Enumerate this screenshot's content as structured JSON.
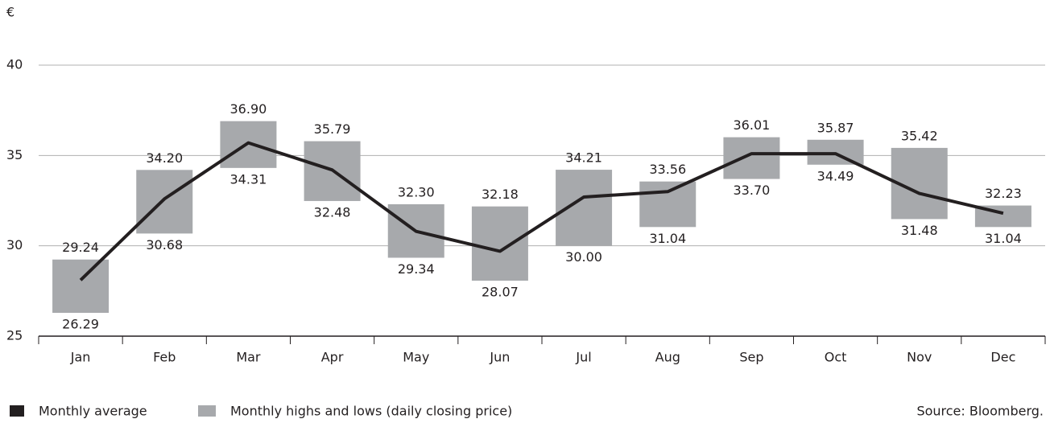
{
  "chart_data": {
    "type": "range",
    "ylabel": "€",
    "categories": [
      "Jan",
      "Feb",
      "Mar",
      "Apr",
      "May",
      "Jun",
      "Jul",
      "Aug",
      "Sep",
      "Oct",
      "Nov",
      "Dec"
    ],
    "series": [
      {
        "name": "Monthly average",
        "color": "#231f20",
        "values": [
          28.1,
          32.6,
          35.7,
          34.2,
          30.8,
          29.7,
          32.7,
          33.0,
          35.1,
          35.1,
          32.9,
          31.8
        ]
      },
      {
        "name": "Monthly highs and lows (daily closing price)",
        "color": "#a7a9ac",
        "high": [
          29.24,
          34.2,
          36.9,
          35.79,
          32.3,
          32.18,
          34.21,
          33.56,
          36.01,
          35.87,
          35.42,
          32.23
        ],
        "high_labels": [
          "29.24",
          "34.20",
          "36.90",
          "35.79",
          "32.30",
          "32.18",
          "34.21",
          "33.56",
          "36.01",
          "35.87",
          "35.42",
          "32.23"
        ],
        "low": [
          26.29,
          30.68,
          34.31,
          32.48,
          29.34,
          28.07,
          30.0,
          31.04,
          33.7,
          34.49,
          31.48,
          31.04
        ],
        "low_labels": [
          "26.29",
          "30.68",
          "34.31",
          "32.48",
          "29.34",
          "28.07",
          "30.00",
          "31.04",
          "33.70",
          "34.49",
          "31.48",
          "31.04"
        ]
      }
    ],
    "ylim": [
      25,
      40
    ],
    "yticks": [
      25,
      30,
      35,
      40
    ],
    "grid": true,
    "source": "Source: Bloomberg."
  }
}
